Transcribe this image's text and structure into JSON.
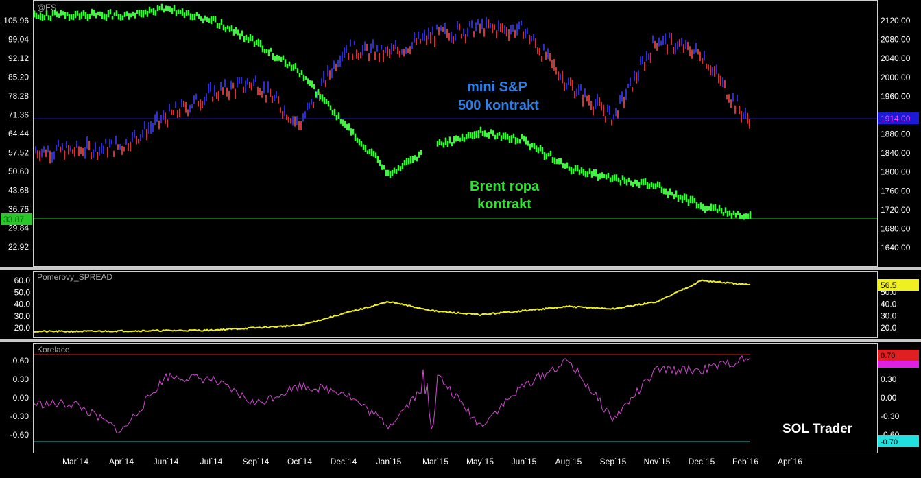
{
  "colors": {
    "background": "#000000",
    "frame": "#d0d0d0",
    "sp_up": "#2b2bd8",
    "sp_down": "#d83030",
    "brent": "#32ff32",
    "spread": "#f0f020",
    "correlation": "#d24ad2",
    "price_line": "#1a1ab4",
    "level_line": "#32c832",
    "upper_threshold": "#e02020",
    "lower_threshold": "#20c0c0"
  },
  "x_axis": {
    "labels": [
      "Mar`14",
      "Apr`14",
      "Jun`14",
      "Jul`14",
      "Sep`14",
      "Oct`14",
      "Dec`14",
      "Jan`15",
      "Mar`15",
      "May`15",
      "Jun`15",
      "Aug`15",
      "Sep`15",
      "Nov`15",
      "Dec`15",
      "Feb`16",
      "Apr`16"
    ],
    "label_x": [
      110,
      177,
      242,
      308,
      373,
      437,
      501,
      567,
      635,
      700,
      764,
      829,
      894,
      958,
      1023,
      1087,
      1152
    ]
  },
  "chart_data": [
    {
      "type": "line",
      "title": "@ES",
      "left_axis_ticks": [
        "105.96",
        "99.04",
        "92.12",
        "85.20",
        "78.28",
        "71.36",
        "64.44",
        "57.52",
        "50.60",
        "43.68",
        "36.76",
        "29.84",
        "22.92"
      ],
      "right_axis_ticks": [
        "2120.00",
        "2080.00",
        "2040.00",
        "2000.00",
        "1960.00",
        "1920.00",
        "1880.00",
        "1840.00",
        "1800.00",
        "1760.00",
        "1720.00",
        "1680.00",
        "1640.00"
      ],
      "annotations": {
        "sp": [
          "mini S&P",
          "500  kontrakt"
        ],
        "brent": [
          "Brent ropa",
          "kontrakt"
        ]
      },
      "last_value_badges": {
        "sp": "1914.00",
        "brent": "33.87"
      },
      "series": [
        {
          "axis": "right",
          "x": [
            "Mar`14",
            "Apr`14",
            "Jun`14",
            "Jul`14",
            "Sep`14",
            "Oct`14",
            "Dec`14",
            "Jan`15",
            "Mar`15",
            "May`15",
            "Jun`15",
            "Aug`15",
            "Sep`15",
            "Nov`15",
            "Dec`15",
            "Feb`16"
          ],
          "values": [
            1845,
            1855,
            1915,
            1965,
            1990,
            1900,
            2060,
            2050,
            2090,
            2105,
            2100,
            1985,
            1915,
            2080,
            2050,
            1914
          ]
        },
        {
          "axis": "left",
          "x": [
            "Mar`14",
            "Apr`14",
            "Jun`14",
            "Jul`14",
            "Sep`14",
            "Oct`14",
            "Dec`14",
            "Jan`15",
            "Mar`15",
            "May`15",
            "Jun`15",
            "Aug`15",
            "Sep`15",
            "Nov`15",
            "Dec`15",
            "Feb`16"
          ],
          "values": [
            108,
            108,
            110,
            106,
            98,
            87,
            68,
            50,
            60,
            65,
            62,
            52,
            48,
            45,
            38,
            33.87
          ]
        }
      ]
    },
    {
      "type": "line",
      "title": "Pomerovy_SPREAD",
      "axis_ticks": [
        "60.0",
        "50.0",
        "40.0",
        "30.0",
        "20.0"
      ],
      "right_axis_ticks": [
        "50.0",
        "40.0",
        "30.0",
        "20.0"
      ],
      "last_value": "56.5",
      "series": [
        {
          "x": [
            "Mar`14",
            "Jul`14",
            "Oct`14",
            "Dec`14",
            "Jan`15",
            "Mar`15",
            "May`15",
            "Aug`15",
            "Sep`15",
            "Nov`15",
            "Dec`15",
            "Feb`16"
          ],
          "values": [
            17,
            18,
            22,
            32,
            42,
            34,
            31,
            38,
            36,
            42,
            60,
            56.5
          ]
        }
      ]
    },
    {
      "type": "line",
      "title": "Korelace",
      "axis_ticks": [
        "0.60",
        "0.30",
        "0.00",
        "-0.30",
        "-0.60"
      ],
      "right_axis_ticks": [
        "0.30",
        "0.00",
        "-0.30",
        "-0.60"
      ],
      "thresholds": {
        "upper": "0.70",
        "lower": "-0.70"
      },
      "series": [
        {
          "x": [
            "Mar`14",
            "Apr`14",
            "Jun`14",
            "Jul`14",
            "Sep`14",
            "Oct`14",
            "Dec`14",
            "Jan`15",
            "Mar`15",
            "May`15",
            "Jun`15",
            "Aug`15",
            "Sep`15",
            "Nov`15",
            "Dec`15",
            "Feb`16"
          ],
          "values": [
            -0.1,
            -0.55,
            0.35,
            0.3,
            -0.1,
            0.2,
            0.1,
            -0.45,
            0.4,
            -0.45,
            0.2,
            0.6,
            -0.35,
            0.45,
            0.45,
            0.62
          ]
        }
      ]
    }
  ],
  "watermark": "SOL Trader"
}
